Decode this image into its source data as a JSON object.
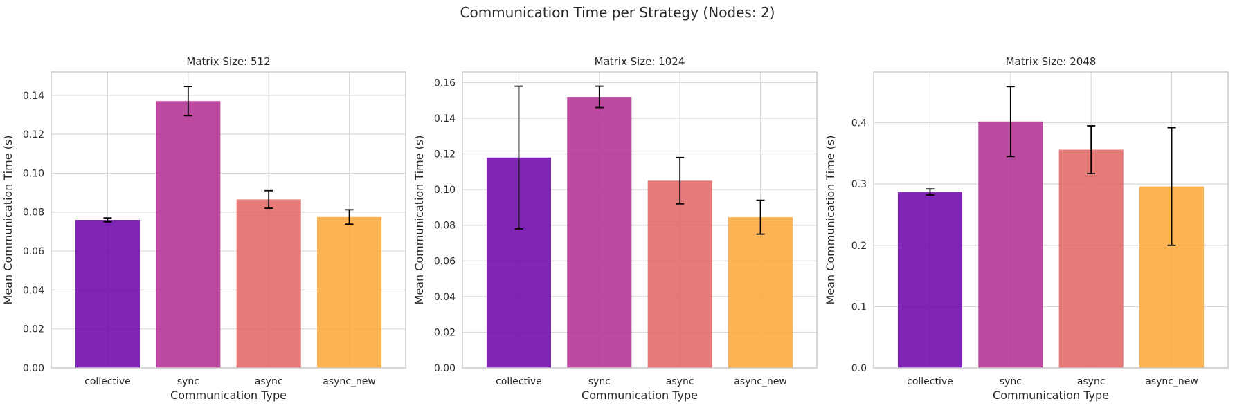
{
  "figure": {
    "title": "Communication Time per Strategy (Nodes: 2)"
  },
  "colors": {
    "collective": "#6a00a8",
    "sync": "#b12a90",
    "async": "#e16462",
    "async_new": "#fca636",
    "grid": "#d9d9d9",
    "frame": "#cccccc",
    "errorbar": "#000000"
  },
  "chart_data": [
    {
      "type": "bar",
      "title": "Matrix Size: 512",
      "xlabel": "Communication Type",
      "ylabel": "Mean Communication Time (s)",
      "categories": [
        "collective",
        "sync",
        "async",
        "async_new"
      ],
      "values": [
        0.076,
        0.137,
        0.0865,
        0.0775
      ],
      "errors": [
        0.001,
        0.0075,
        0.0045,
        0.0037
      ],
      "ylim": [
        0,
        0.152
      ],
      "yticks": [
        0.0,
        0.02,
        0.04,
        0.06,
        0.08,
        0.1,
        0.12,
        0.14
      ],
      "ytick_labels": [
        "0.00",
        "0.02",
        "0.04",
        "0.06",
        "0.08",
        "0.10",
        "0.12",
        "0.14"
      ],
      "grid": true
    },
    {
      "type": "bar",
      "title": "Matrix Size: 1024",
      "xlabel": "Communication Type",
      "ylabel": "Mean Communication Time (s)",
      "categories": [
        "collective",
        "sync",
        "async",
        "async_new"
      ],
      "values": [
        0.118,
        0.152,
        0.105,
        0.0845
      ],
      "errors": [
        0.04,
        0.006,
        0.013,
        0.0095
      ],
      "ylim": [
        0,
        0.166
      ],
      "yticks": [
        0.0,
        0.02,
        0.04,
        0.06,
        0.08,
        0.1,
        0.12,
        0.14,
        0.16
      ],
      "ytick_labels": [
        "0.00",
        "0.02",
        "0.04",
        "0.06",
        "0.08",
        "0.10",
        "0.12",
        "0.14",
        "0.16"
      ],
      "grid": true
    },
    {
      "type": "bar",
      "title": "Matrix Size: 2048",
      "xlabel": "Communication Type",
      "ylabel": "Mean Communication Time (s)",
      "categories": [
        "collective",
        "sync",
        "async",
        "async_new"
      ],
      "values": [
        0.287,
        0.402,
        0.356,
        0.296
      ],
      "errors": [
        0.005,
        0.057,
        0.039,
        0.096
      ],
      "ylim": [
        0,
        0.483
      ],
      "yticks": [
        0.0,
        0.1,
        0.2,
        0.3,
        0.4
      ],
      "ytick_labels": [
        "0.0",
        "0.1",
        "0.2",
        "0.3",
        "0.4"
      ],
      "grid": true
    }
  ]
}
